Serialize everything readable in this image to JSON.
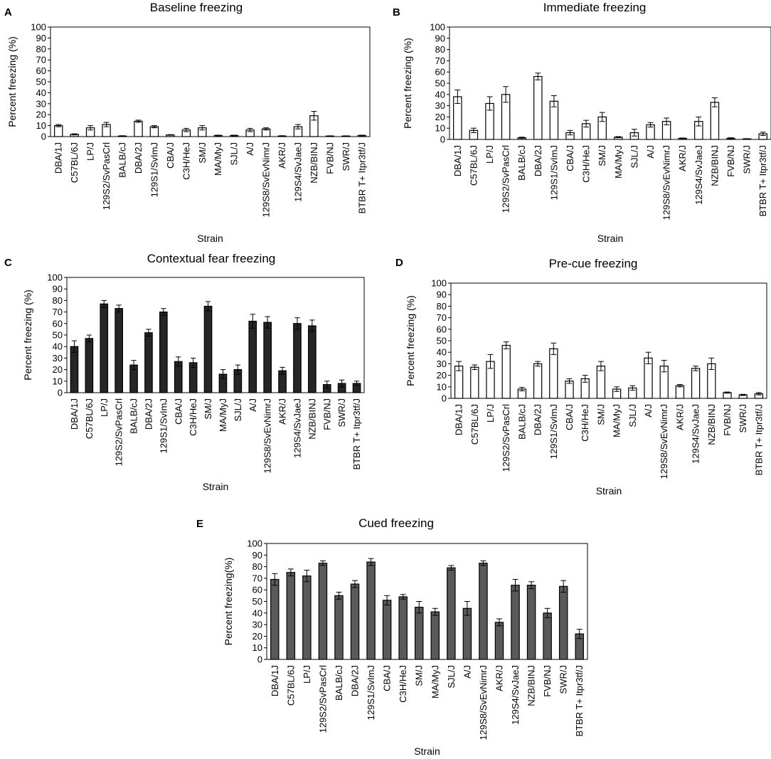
{
  "chart_data": [
    {
      "panel": "A",
      "type": "bar",
      "title": "Baseline freezing",
      "xlabel": "Strain",
      "ylabel": "Percent freezing (%)",
      "ylim": [
        0,
        100
      ],
      "yticks": [
        0,
        10,
        20,
        30,
        40,
        50,
        60,
        70,
        80,
        90,
        100
      ],
      "bar_color": "#ffffff",
      "categories": [
        "DBA/1J",
        "C57BL/6J",
        "LP/J",
        "129S2/SvPasCrl",
        "BALB/cJ",
        "DBA/2J",
        "129S1/SvImJ",
        "CBA/J",
        "C3H/HeJ",
        "SM/J",
        "MA/MyJ",
        "SJL/J",
        "A/J",
        "129S8/SvEvNimrJ",
        "AKR/J",
        "129S4/SvJaeJ",
        "NZB/BINJ",
        "FVB/NJ",
        "SWR/J",
        "BTBR T+ Itpr3tf/J"
      ],
      "values": [
        10,
        2,
        8,
        11,
        0.5,
        14,
        9,
        1.5,
        6,
        8,
        1,
        1,
        6,
        7,
        0.5,
        9,
        19,
        0.5,
        0.5,
        1
      ],
      "errors": [
        1,
        0.5,
        2,
        2,
        0.3,
        1,
        1,
        0.3,
        1.5,
        2,
        0.3,
        0.3,
        1.5,
        1,
        0.3,
        2,
        4,
        0.2,
        0.2,
        0.3
      ]
    },
    {
      "panel": "B",
      "type": "bar",
      "title": "Immediate freezing",
      "xlabel": "Strain",
      "ylabel": "Percent freezing (%)",
      "ylim": [
        0,
        100
      ],
      "yticks": [
        0,
        10,
        20,
        30,
        40,
        50,
        60,
        70,
        80,
        90,
        100
      ],
      "bar_color": "#ffffff",
      "categories": [
        "DBA/1J",
        "C57BL/6J",
        "LP/J",
        "129S2/SvPasCrl",
        "BALB/cJ",
        "DBA/2J",
        "129S1/SvImJ",
        "CBA/J",
        "C3H/HeJ",
        "SM/J",
        "MA/MyJ",
        "SJL/J",
        "A/J",
        "129S8/SvEvNimrJ",
        "AKR/J",
        "129S4/SvJaeJ",
        "NZB/BINJ",
        "FVB/NJ",
        "SWR/J",
        "BTBR T+ Itpr3tf/J"
      ],
      "values": [
        38,
        8,
        32,
        40,
        1.5,
        56,
        34,
        6,
        14,
        20,
        2,
        6,
        13,
        16,
        1,
        16,
        33,
        1,
        0.5,
        5
      ],
      "errors": [
        6,
        2,
        6,
        7,
        0.5,
        3,
        5,
        2,
        3,
        4,
        0.5,
        3,
        2,
        3,
        0.3,
        4,
        4,
        0.5,
        0.2,
        1.5
      ]
    },
    {
      "panel": "C",
      "type": "bar",
      "title": "Contextual fear freezing",
      "xlabel": "Strain",
      "ylabel": "Percent freezing (%)",
      "ylim": [
        0,
        100
      ],
      "yticks": [
        0,
        10,
        20,
        30,
        40,
        50,
        60,
        70,
        80,
        90,
        100
      ],
      "bar_color": "#262626",
      "categories": [
        "DBA/1J",
        "C57BL/6J",
        "LP/J",
        "129S2/SvPasCrl",
        "BALB/cJ",
        "DBA/2J",
        "129S1/SvImJ",
        "CBA/J",
        "C3H/HeJ",
        "SM/J",
        "MA/MyJ",
        "SJL/J",
        "A/J",
        "129S8/SvEvNimrJ",
        "AKR/J",
        "129S4/SvJaeJ",
        "NZB/BINJ",
        "FVB/NJ",
        "SWR/J",
        "BTBR T+ Itpr3tf/J"
      ],
      "values": [
        40,
        47,
        77,
        73,
        24,
        52,
        70,
        27,
        26,
        75,
        16,
        20,
        62,
        61,
        19,
        60,
        58,
        7,
        8,
        8
      ],
      "errors": [
        5,
        3,
        3,
        3,
        4,
        3,
        3,
        4,
        4,
        4,
        4,
        4,
        6,
        5,
        3,
        5,
        5,
        3,
        3,
        2
      ]
    },
    {
      "panel": "D",
      "type": "bar",
      "title": "Pre-cue freezing",
      "xlabel": "Strain",
      "ylabel": "Percent freezing (%)",
      "ylim": [
        0,
        100
      ],
      "yticks": [
        0,
        10,
        20,
        30,
        40,
        50,
        60,
        70,
        80,
        90,
        100
      ],
      "bar_color": "#ffffff",
      "categories": [
        "DBA/1J",
        "C57BL/6J",
        "LP/J",
        "129S2/SvPasCrl",
        "BALB/cJ",
        "DBA/2J",
        "129S1/SvImJ",
        "CBA/J",
        "C3H/HeJ",
        "SM/J",
        "MA/MyJ",
        "SJL/J",
        "A/J",
        "129S8/SvEvNimrJ",
        "AKR/J",
        "129S4/SvJaeJ",
        "NZB/BINJ",
        "FVB/NJ",
        "SWR/J",
        "BTBR T+ Itpr3tf/J"
      ],
      "values": [
        28,
        27,
        32,
        46,
        8,
        30,
        43,
        15,
        17,
        28,
        8,
        9,
        35,
        28,
        11,
        26,
        30,
        5,
        3,
        4
      ],
      "errors": [
        4,
        2,
        6,
        3,
        1.5,
        2,
        5,
        2,
        3,
        4,
        2,
        2,
        5,
        5,
        1,
        2,
        5,
        0.5,
        0.5,
        1
      ]
    },
    {
      "panel": "E",
      "type": "bar",
      "title": "Cued freezing",
      "xlabel": "Strain",
      "ylabel": "Percent freezing(%)",
      "ylim": [
        0,
        100
      ],
      "yticks": [
        0,
        10,
        20,
        30,
        40,
        50,
        60,
        70,
        80,
        90,
        100
      ],
      "bar_color": "#5a5a5a",
      "categories": [
        "DBA/1J",
        "C57BL/6J",
        "LP/J",
        "129S2/SvPasCrl",
        "BALB/cJ",
        "DBA/2J",
        "129S1/SvImJ",
        "CBA/J",
        "C3H/HeJ",
        "SM/J",
        "MA/MyJ",
        "SJL/J",
        "A/J",
        "129S8/SvEvNimrJ",
        "AKR/J",
        "129S4/SvJaeJ",
        "NZB/BINJ",
        "FVB/NJ",
        "SWR/J",
        "BTBR T+ Itpr3tf/J"
      ],
      "values": [
        69,
        75,
        72,
        83,
        55,
        65,
        84,
        51,
        54,
        45,
        41,
        79,
        44,
        83,
        32,
        64,
        64,
        40,
        63,
        22
      ],
      "errors": [
        5,
        3,
        5,
        2,
        3,
        3,
        3,
        4,
        2,
        5,
        3,
        2,
        6,
        2,
        3,
        5,
        3,
        4,
        5,
        4
      ]
    }
  ]
}
